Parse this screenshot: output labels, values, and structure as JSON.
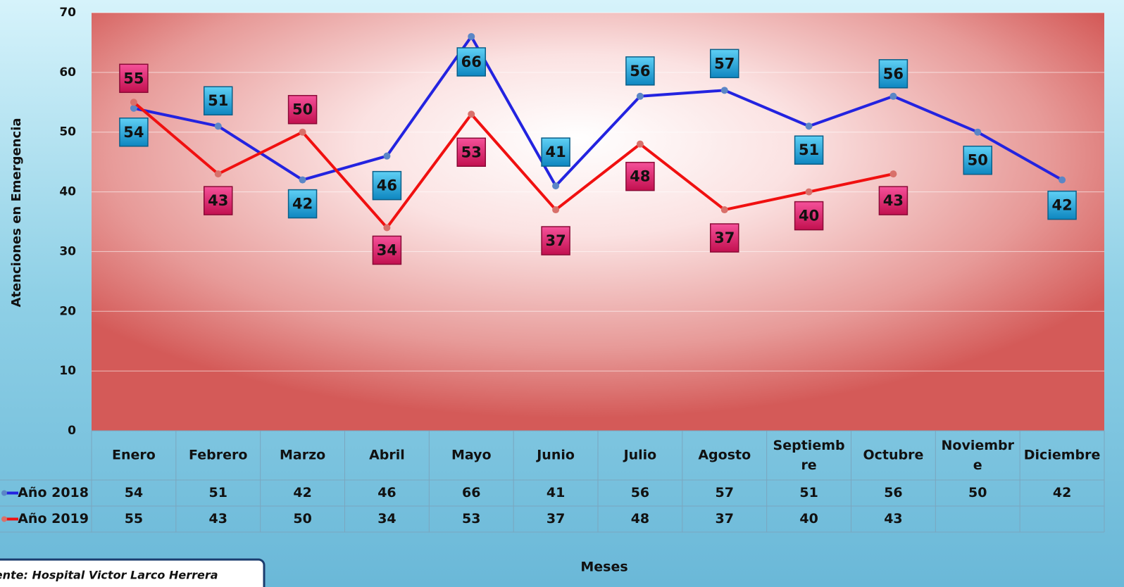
{
  "chart_data": {
    "type": "line",
    "y_label": "Atenciones en Emergencia",
    "x_label": "Meses",
    "source": "Fuente: Hospital Victor Larco Herrera",
    "categories": [
      "Enero",
      "Febrero",
      "Marzo",
      "Abril",
      "Mayo",
      "Junio",
      "Julio",
      "Agosto",
      "Septiembre",
      "Octubre",
      "Noviembre",
      "Diciembre"
    ],
    "series": [
      {
        "name": "Año 2018",
        "color": "#2323e0",
        "label_color": "#1aa0d8",
        "values": [
          54,
          51,
          42,
          46,
          66,
          41,
          56,
          57,
          51,
          56,
          50,
          42
        ]
      },
      {
        "name": "Año 2019",
        "color": "#f01010",
        "label_color": "#e0206a",
        "values": [
          55,
          43,
          50,
          34,
          53,
          37,
          48,
          37,
          40,
          43,
          null,
          null
        ]
      }
    ],
    "ylim": [
      0,
      70
    ],
    "yticks": [
      0,
      10,
      20,
      30,
      40,
      50,
      60,
      70
    ],
    "grid": true
  }
}
